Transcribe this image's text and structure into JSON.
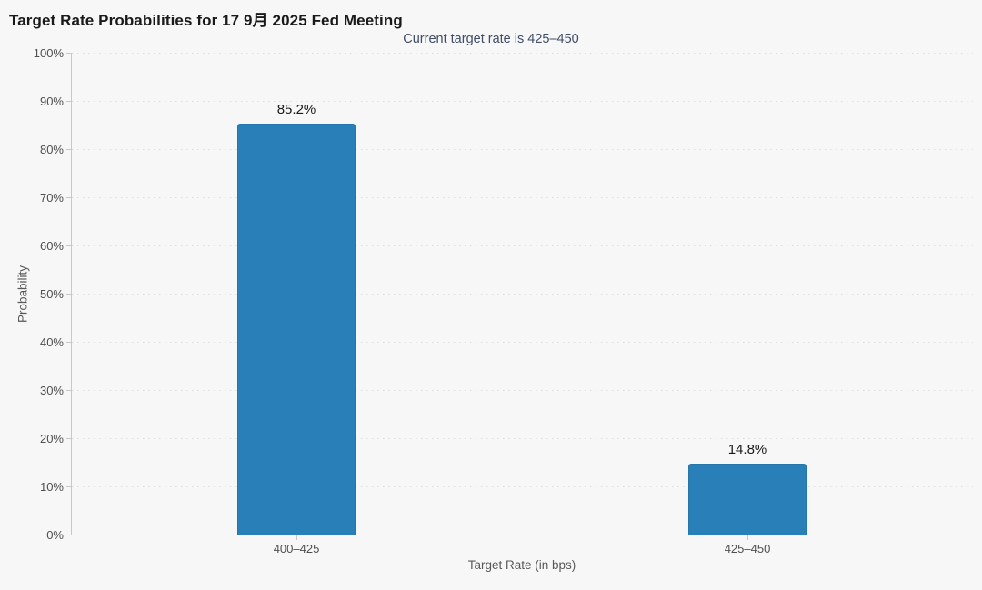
{
  "chart_data": {
    "type": "bar",
    "title": "Target Rate Probabilities for 17 9月 2025 Fed Meeting",
    "subtitle": "Current target rate is 425–450",
    "categories": [
      "400–425",
      "425–450"
    ],
    "values": [
      85.2,
      14.8
    ],
    "value_labels": [
      "85.2%",
      "14.8%"
    ],
    "xlabel": "Target Rate (in bps)",
    "ylabel": "Probability",
    "ylim": [
      0,
      100
    ],
    "ytick_step": 10,
    "ytick_labels": [
      "0%",
      "10%",
      "20%",
      "30%",
      "40%",
      "50%",
      "60%",
      "70%",
      "80%",
      "90%",
      "100%"
    ],
    "grid": "horizontal-dotted",
    "legend": "none",
    "bar_color": "#2980b9"
  },
  "colors": {
    "background": "#f7f7f7",
    "bar": "#2980b9",
    "title_text": "#1a1a1a",
    "subtitle_text": "#3f4d66",
    "axis_text": "#4f4f4f",
    "axis_line": "#c8c8c8",
    "gridline": "#dedede"
  }
}
